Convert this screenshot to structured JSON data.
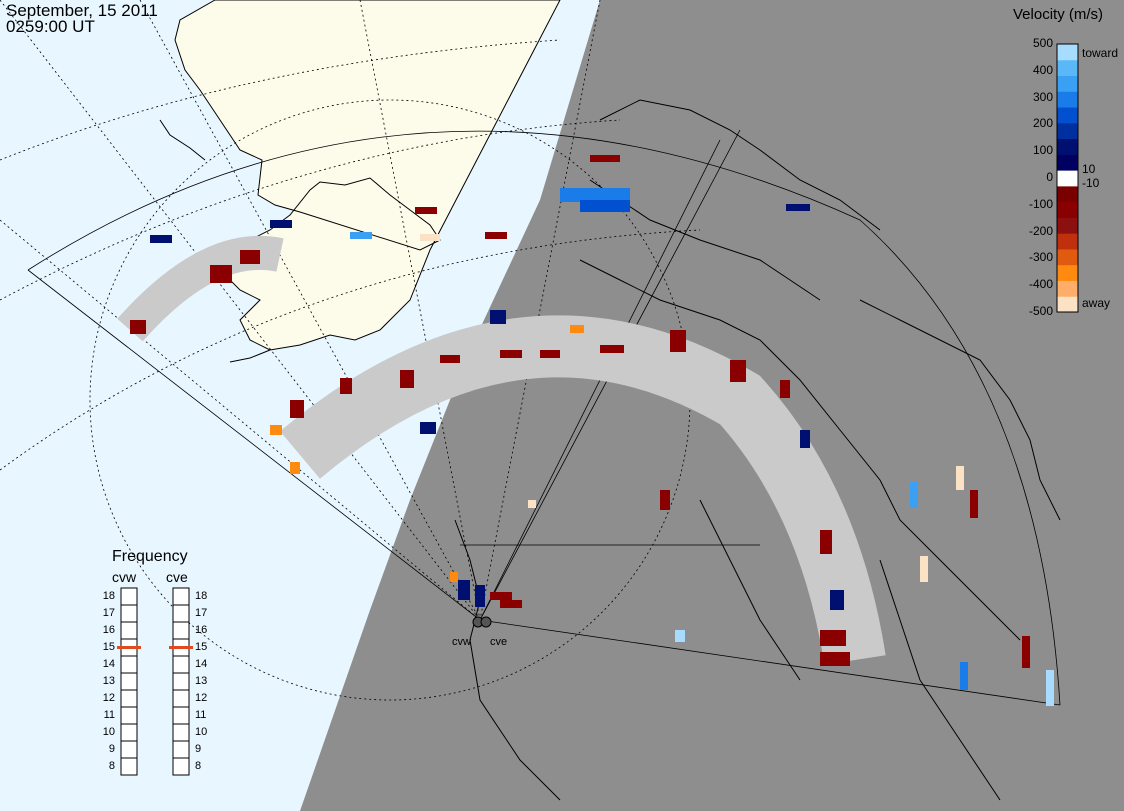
{
  "header": {
    "date": "September, 15 2011",
    "time": "0259:00 UT"
  },
  "velocity_scale": {
    "title": "Velocity (m/s)",
    "ticks": [
      "500",
      "400",
      "300",
      "200",
      "100",
      "0",
      "-100",
      "-200",
      "-300",
      "-400",
      "-500"
    ],
    "near_zero_labels": [
      "10",
      "-10"
    ],
    "toward_label": "toward",
    "away_label": "away",
    "colors": [
      "#fbe2c4",
      "#ffae6a",
      "#ff8a10",
      "#e05a10",
      "#c0300c",
      "#8c1010",
      "#8a0000",
      "#7a0000",
      "#ffffff",
      "#000060",
      "#001070",
      "#0030a0",
      "#0050d0",
      "#1a7ce8",
      "#3aa0f4",
      "#5ab8f8",
      "#a8dcff"
    ]
  },
  "frequency": {
    "title": "Frequency",
    "columns": [
      {
        "name": "cvw",
        "value": 15
      },
      {
        "name": "cve",
        "value": 15
      }
    ],
    "levels": [
      "18",
      "17",
      "16",
      "15",
      "14",
      "13",
      "12",
      "11",
      "10",
      "9",
      "8"
    ]
  },
  "radars": [
    {
      "name": "cvw"
    },
    {
      "name": "cve"
    }
  ],
  "colors": {
    "ocean": "#e8f6ff",
    "land": "#fdfbea",
    "night": "#8e8e8e",
    "ground_scatter": "#cacaca",
    "indicator": "#e04a20"
  }
}
